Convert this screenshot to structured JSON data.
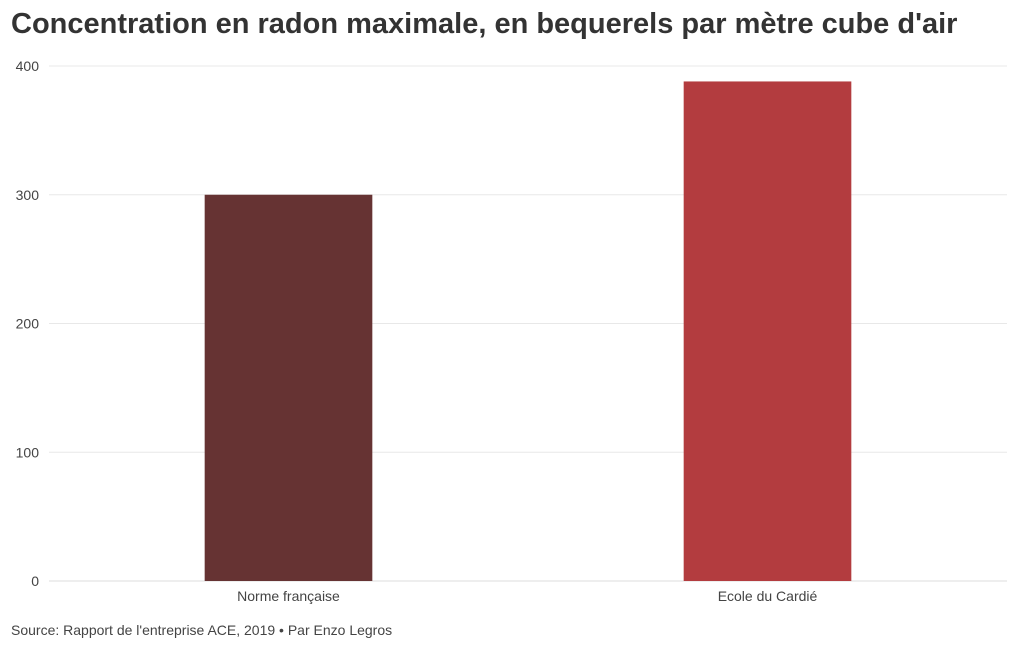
{
  "chart_data": {
    "type": "bar",
    "title": "Concentration en radon maximale, en bequerels par mètre cube d'air",
    "categories": [
      "Norme française",
      "Ecole du Cardié"
    ],
    "values": [
      300,
      388
    ],
    "colors": [
      "#663333",
      "#b33c3f"
    ],
    "ylim": [
      0,
      400
    ],
    "yticks": [
      0,
      100,
      200,
      300,
      400
    ],
    "grid": true,
    "legend": "none"
  },
  "footer": {
    "source": "Source: Rapport de l'entreprise ACE, 2019 • Par Enzo Legros"
  }
}
